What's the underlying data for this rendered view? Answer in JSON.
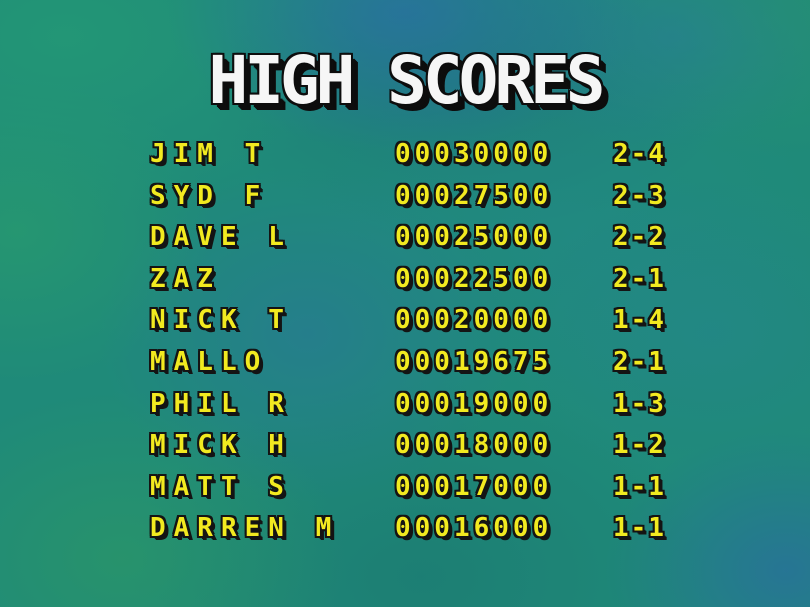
{
  "title": "HIGH SCORES",
  "colors": {
    "row_text": "#f2ea20",
    "title_text": "#f6f6f6",
    "outline": "#141414",
    "background_base": "#1f8a79"
  },
  "rows": [
    {
      "name": "JIM T",
      "score": "00030000",
      "level": "2-4"
    },
    {
      "name": "SYD F",
      "score": "00027500",
      "level": "2-3"
    },
    {
      "name": "DAVE L",
      "score": "00025000",
      "level": "2-2"
    },
    {
      "name": "ZAZ",
      "score": "00022500",
      "level": "2-1"
    },
    {
      "name": "NICK T",
      "score": "00020000",
      "level": "1-4"
    },
    {
      "name": "MALLO",
      "score": "00019675",
      "level": "2-1"
    },
    {
      "name": "PHIL R",
      "score": "00019000",
      "level": "1-3"
    },
    {
      "name": "MICK H",
      "score": "00018000",
      "level": "1-2"
    },
    {
      "name": "MATT S",
      "score": "00017000",
      "level": "1-1"
    },
    {
      "name": "DARREN M",
      "score": "00016000",
      "level": "1-1"
    }
  ]
}
